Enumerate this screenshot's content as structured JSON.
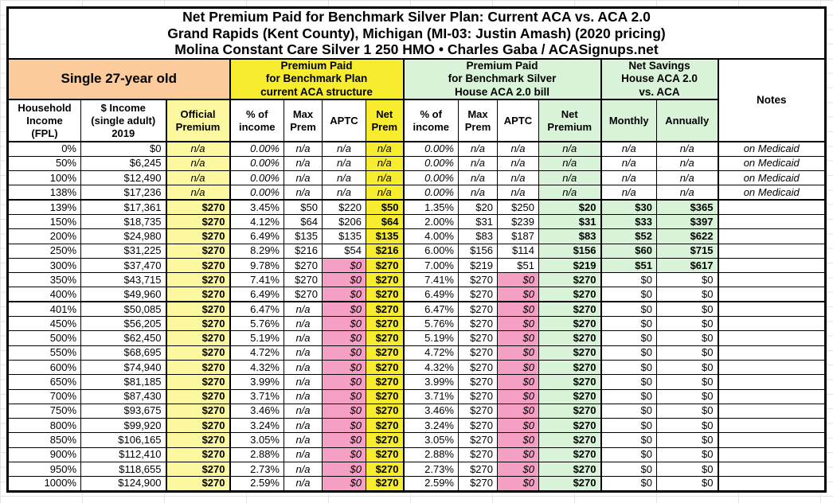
{
  "title": {
    "line1": "Net Premium Paid for Benchmark Silver Plan: Current ACA vs. ACA 2.0",
    "line2": "Grand Rapids (Kent County), Michigan (MI-03: Justin Amash) (2020 pricing)",
    "line3": "Molina Constant Care Silver 1 250 HMO • Charles Gaba / ACASignups.net"
  },
  "head": {
    "group_left": "Single 27-year old",
    "group_aca": "Premium Paid\nfor Benchmark Plan\ncurrent ACA structure",
    "group_house": "Premium Paid\nfor Benchmark Silver\nHouse ACA 2.0 bill",
    "group_savings": "Net Savings\nHouse ACA 2.0\nvs. ACA",
    "notes": "Notes",
    "c_fpl": "Household\nIncome\n(FPL)",
    "c_income": "$ Income\n(single adult)\n2019",
    "c_official": "Official\nPremium",
    "c_pct1": "% of\nincome",
    "c_max1": "Max\nPrem",
    "c_aptc1": "APTC",
    "c_net1": "Net\nPrem",
    "c_pct2": "% of\nincome",
    "c_max2": "Max\nPrem",
    "c_aptc2": "APTC",
    "c_net2": "Net\nPremium",
    "c_month": "Monthly",
    "c_year": "Annually"
  },
  "chart_data": {
    "type": "table",
    "columns": [
      "Household Income (FPL)",
      "$ Income (single adult) 2019",
      "Official Premium",
      "% of income",
      "Max Prem",
      "APTC",
      "Net Prem",
      "% of income",
      "Max Prem",
      "APTC",
      "Net Premium",
      "Monthly",
      "Annually",
      "Notes"
    ],
    "rows": [
      [
        "0%",
        "$0",
        "n/a",
        "0.00%",
        "n/a",
        "n/a",
        "n/a",
        "0.00%",
        "n/a",
        "n/a",
        "n/a",
        "n/a",
        "n/a",
        "on Medicaid"
      ],
      [
        "50%",
        "$6,245",
        "n/a",
        "0.00%",
        "n/a",
        "n/a",
        "n/a",
        "0.00%",
        "n/a",
        "n/a",
        "n/a",
        "n/a",
        "n/a",
        "on Medicaid"
      ],
      [
        "100%",
        "$12,490",
        "n/a",
        "0.00%",
        "n/a",
        "n/a",
        "n/a",
        "0.00%",
        "n/a",
        "n/a",
        "n/a",
        "n/a",
        "n/a",
        "on Medicaid"
      ],
      [
        "138%",
        "$17,236",
        "n/a",
        "0.00%",
        "n/a",
        "n/a",
        "n/a",
        "0.00%",
        "n/a",
        "n/a",
        "n/a",
        "n/a",
        "n/a",
        "on Medicaid"
      ],
      [
        "139%",
        "$17,361",
        "$270",
        "3.45%",
        "$50",
        "$220",
        "$50",
        "1.35%",
        "$20",
        "$250",
        "$20",
        "$30",
        "$365",
        ""
      ],
      [
        "150%",
        "$18,735",
        "$270",
        "4.12%",
        "$64",
        "$206",
        "$64",
        "2.00%",
        "$31",
        "$239",
        "$31",
        "$33",
        "$397",
        ""
      ],
      [
        "200%",
        "$24,980",
        "$270",
        "6.49%",
        "$135",
        "$135",
        "$135",
        "4.00%",
        "$83",
        "$187",
        "$83",
        "$52",
        "$622",
        ""
      ],
      [
        "250%",
        "$31,225",
        "$270",
        "8.29%",
        "$216",
        "$54",
        "$216",
        "6.00%",
        "$156",
        "$114",
        "$156",
        "$60",
        "$715",
        ""
      ],
      [
        "300%",
        "$37,470",
        "$270",
        "9.78%",
        "$270",
        "$0",
        "$270",
        "7.00%",
        "$219",
        "$51",
        "$219",
        "$51",
        "$617",
        ""
      ],
      [
        "350%",
        "$43,715",
        "$270",
        "7.41%",
        "$270",
        "$0",
        "$270",
        "7.41%",
        "$270",
        "$0",
        "$270",
        "$0",
        "$0",
        ""
      ],
      [
        "400%",
        "$49,960",
        "$270",
        "6.49%",
        "$270",
        "$0",
        "$270",
        "6.49%",
        "$270",
        "$0",
        "$270",
        "$0",
        "$0",
        ""
      ],
      [
        "401%",
        "$50,085",
        "$270",
        "6.47%",
        "n/a",
        "$0",
        "$270",
        "6.47%",
        "$270",
        "$0",
        "$270",
        "$0",
        "$0",
        ""
      ],
      [
        "450%",
        "$56,205",
        "$270",
        "5.76%",
        "n/a",
        "$0",
        "$270",
        "5.76%",
        "$270",
        "$0",
        "$270",
        "$0",
        "$0",
        ""
      ],
      [
        "500%",
        "$62,450",
        "$270",
        "5.19%",
        "n/a",
        "$0",
        "$270",
        "5.19%",
        "$270",
        "$0",
        "$270",
        "$0",
        "$0",
        ""
      ],
      [
        "550%",
        "$68,695",
        "$270",
        "4.72%",
        "n/a",
        "$0",
        "$270",
        "4.72%",
        "$270",
        "$0",
        "$270",
        "$0",
        "$0",
        ""
      ],
      [
        "600%",
        "$74,940",
        "$270",
        "4.32%",
        "n/a",
        "$0",
        "$270",
        "4.32%",
        "$270",
        "$0",
        "$270",
        "$0",
        "$0",
        ""
      ],
      [
        "650%",
        "$81,185",
        "$270",
        "3.99%",
        "n/a",
        "$0",
        "$270",
        "3.99%",
        "$270",
        "$0",
        "$270",
        "$0",
        "$0",
        ""
      ],
      [
        "700%",
        "$87,430",
        "$270",
        "3.71%",
        "n/a",
        "$0",
        "$270",
        "3.71%",
        "$270",
        "$0",
        "$270",
        "$0",
        "$0",
        ""
      ],
      [
        "750%",
        "$93,675",
        "$270",
        "3.46%",
        "n/a",
        "$0",
        "$270",
        "3.46%",
        "$270",
        "$0",
        "$270",
        "$0",
        "$0",
        ""
      ],
      [
        "800%",
        "$99,920",
        "$270",
        "3.24%",
        "n/a",
        "$0",
        "$270",
        "3.24%",
        "$270",
        "$0",
        "$270",
        "$0",
        "$0",
        ""
      ],
      [
        "850%",
        "$106,165",
        "$270",
        "3.05%",
        "n/a",
        "$0",
        "$270",
        "3.05%",
        "$270",
        "$0",
        "$270",
        "$0",
        "$0",
        ""
      ],
      [
        "900%",
        "$112,410",
        "$270",
        "2.88%",
        "n/a",
        "$0",
        "$270",
        "2.88%",
        "$270",
        "$0",
        "$270",
        "$0",
        "$0",
        ""
      ],
      [
        "950%",
        "$118,655",
        "$270",
        "2.73%",
        "n/a",
        "$0",
        "$270",
        "2.73%",
        "$270",
        "$0",
        "$270",
        "$0",
        "$0",
        ""
      ],
      [
        "1000%",
        "$124,900",
        "$270",
        "2.59%",
        "n/a",
        "$0",
        "$270",
        "2.59%",
        "$270",
        "$0",
        "$270",
        "$0",
        "$0",
        ""
      ]
    ]
  },
  "colors": {
    "peach": "#FBCB9B",
    "bright_yellow": "#F8EC2E",
    "light_yellow": "#FBF8A0",
    "light_green": "#D8F3D8",
    "pink": "#F69FC5",
    "border": "#000000"
  }
}
